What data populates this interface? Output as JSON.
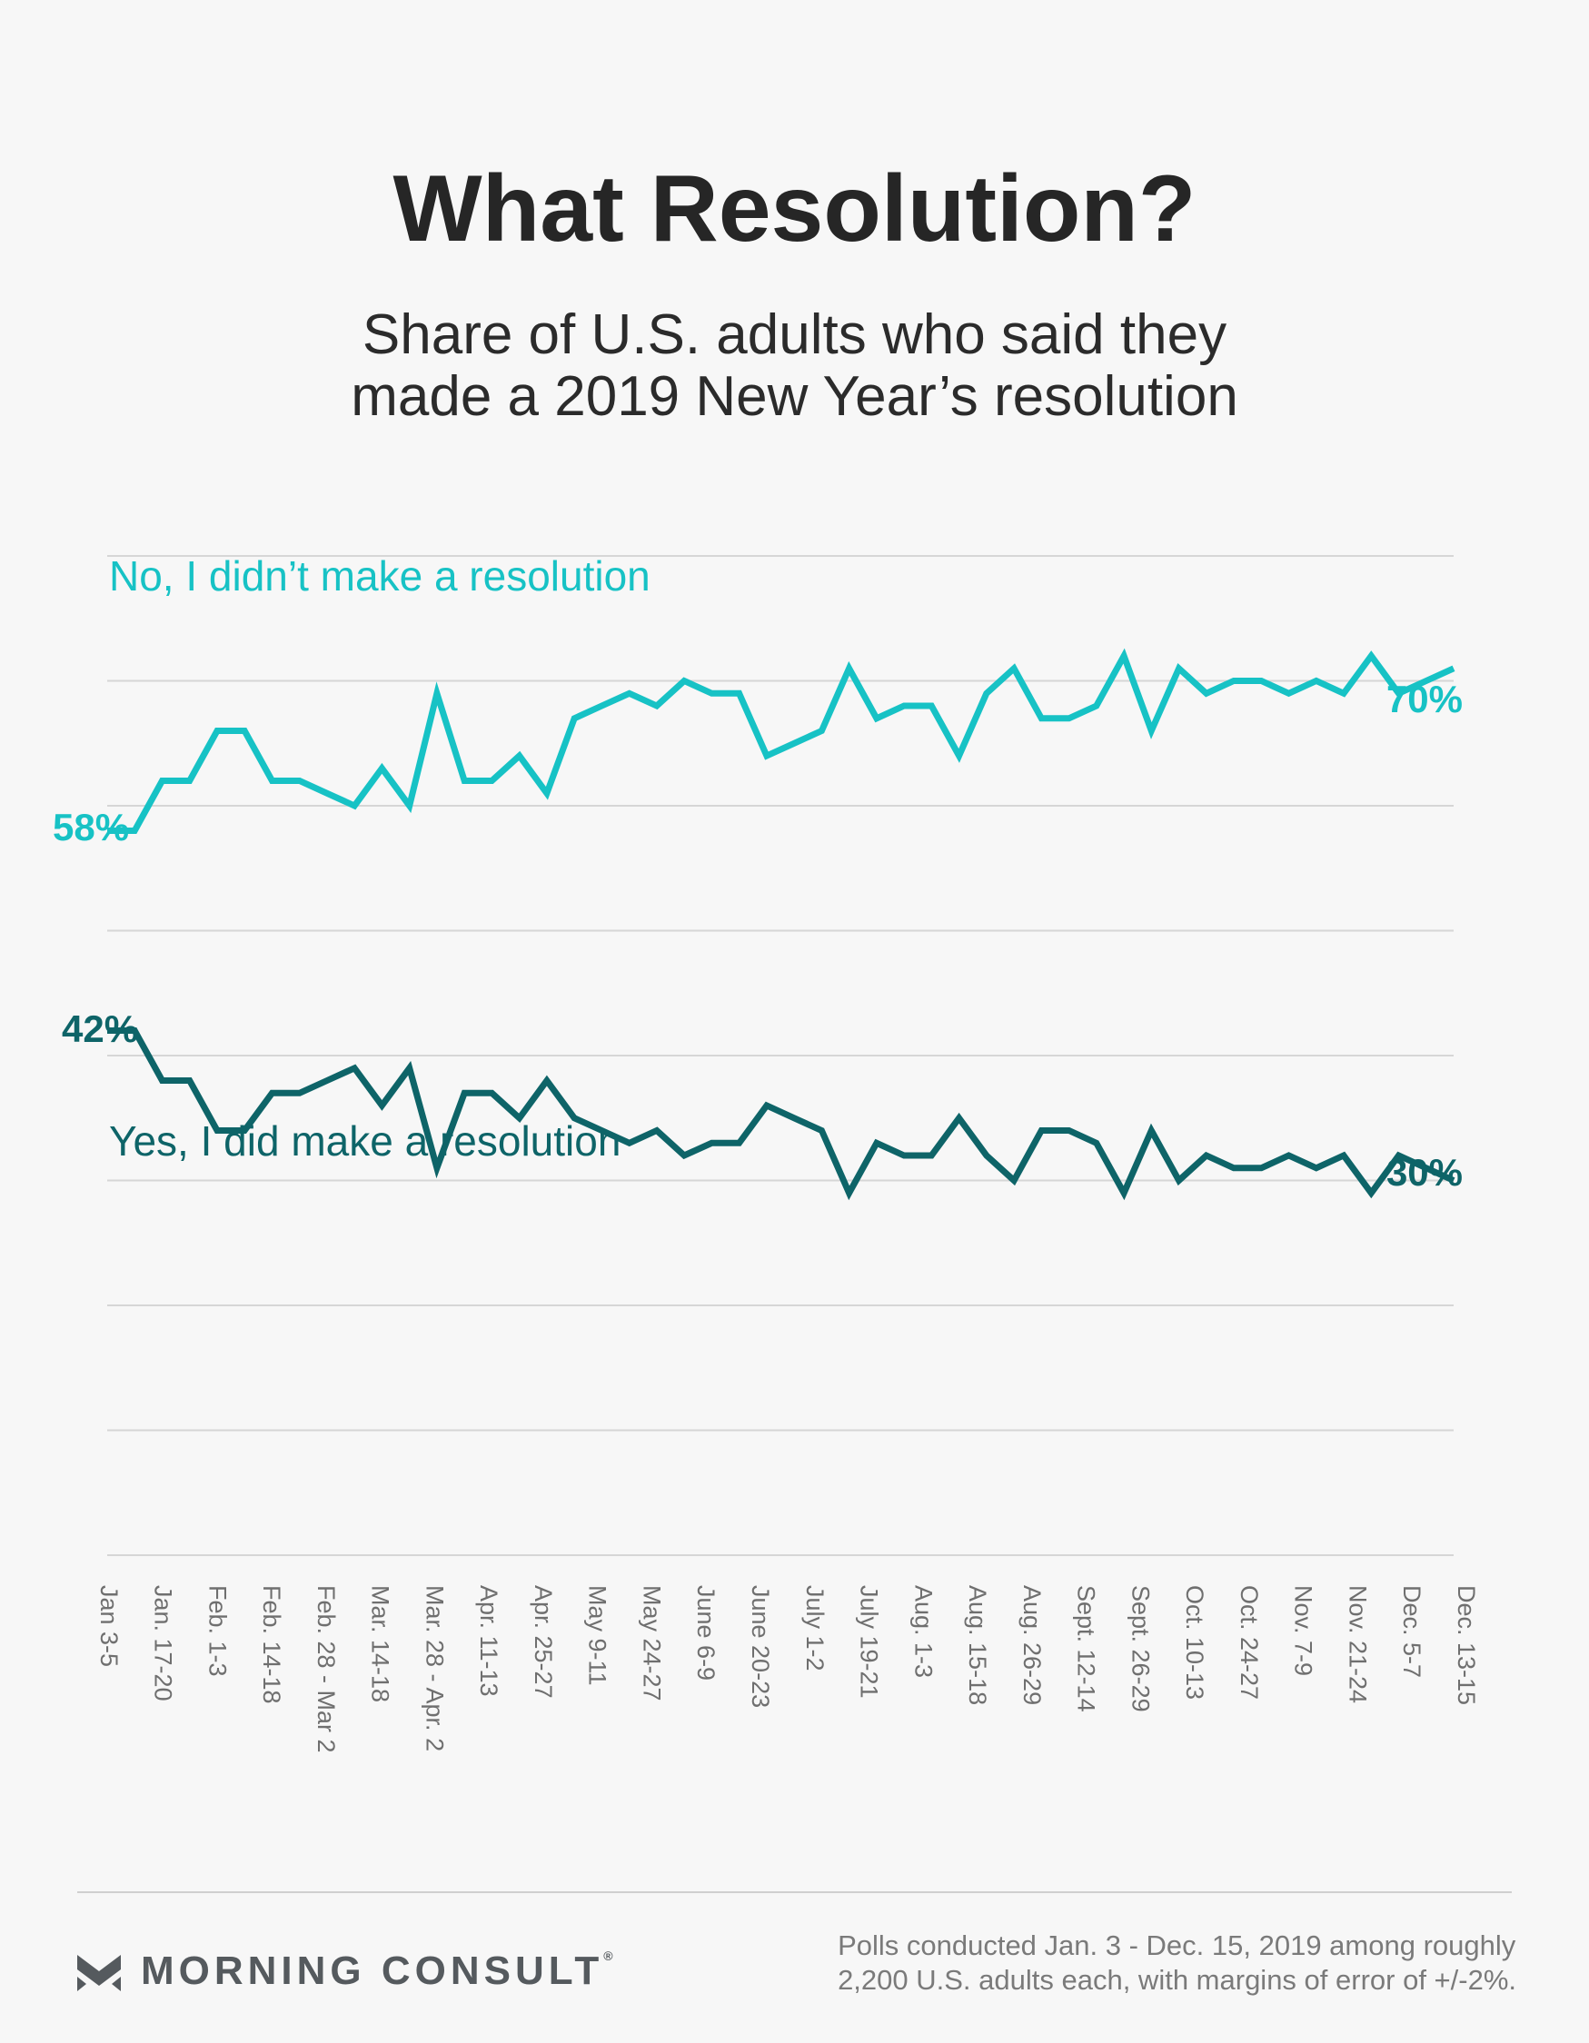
{
  "header": {
    "title": "What Resolution?",
    "subtitle_line1": "Share of U.S. adults who said they",
    "subtitle_line2": "made a 2019 New Year’s resolution"
  },
  "colors": {
    "no_series": "#17c2c5",
    "yes_series": "#0e6468",
    "gridline": "#d6d6d6",
    "tick_label": "#6f6f6f",
    "title": "#262626"
  },
  "chart_data": {
    "type": "line",
    "ylim": [
      0,
      80
    ],
    "y_gridlines": [
      0,
      10,
      20,
      30,
      40,
      50,
      60,
      70,
      80
    ],
    "y_tick_labels_shown": false,
    "xlabel": "",
    "ylabel": "",
    "x_tick_labels": [
      "Jan 3-5",
      "Jan. 17-20",
      "Feb. 1-3",
      "Feb. 14-18",
      "Feb. 28 - Mar 2",
      "Mar. 14-18",
      "Mar. 28 - Apr. 2",
      "Apr. 11-13",
      "Apr. 25-27",
      "May 9-11",
      "May 24-27",
      "June 6-9",
      "June 20-23",
      "July 1-2",
      "July 19-21",
      "Aug. 1-3",
      "Aug. 15-18",
      "Aug. 26-29",
      "Sept. 12-14",
      "Sept. 26-29",
      "Oct. 10-13",
      "Oct. 24-27",
      "Nov. 7-9",
      "Nov. 21-24",
      "Dec. 5-7",
      "Dec. 13-15"
    ],
    "series": [
      {
        "name": "No, I didn’t make a resolution",
        "start_label": "58%",
        "end_label": "70%",
        "values": [
          58,
          58,
          62,
          62,
          66,
          66,
          62,
          62,
          61,
          60,
          63,
          60,
          69,
          62,
          62,
          64,
          61,
          67,
          68,
          69,
          68,
          70,
          69,
          69,
          64,
          65,
          66,
          71,
          67,
          68,
          68,
          64,
          69,
          71,
          67,
          67,
          68,
          72,
          66,
          71,
          69,
          70,
          70,
          69,
          70,
          69,
          72,
          69,
          70,
          71
        ]
      },
      {
        "name": "Yes, I did make a resolution",
        "start_label": "42%",
        "end_label": "30%",
        "values": [
          42,
          42,
          38,
          38,
          34,
          34,
          37,
          37,
          38,
          39,
          36,
          39,
          31,
          37,
          37,
          35,
          38,
          35,
          34,
          33,
          34,
          32,
          33,
          33,
          36,
          35,
          34,
          29,
          33,
          32,
          32,
          35,
          32,
          30,
          34,
          34,
          33,
          29,
          34,
          30,
          32,
          31,
          31,
          32,
          31,
          32,
          29,
          32,
          31,
          30
        ]
      }
    ]
  },
  "footer": {
    "brand": "MORNING CONSULT",
    "note_line1": "Polls conducted Jan. 3 - Dec. 15, 2019 among roughly",
    "note_line2": "2,200 U.S. adults each, with margins of error of +/-2%."
  }
}
